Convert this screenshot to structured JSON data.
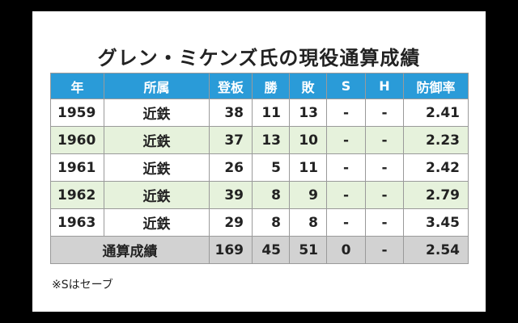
{
  "title": "グレン・ミケンズ氏の現役通算成績",
  "table": {
    "headers": [
      "年",
      "所属",
      "登板",
      "勝",
      "敗",
      "S",
      "H",
      "防御率"
    ],
    "rows": [
      [
        "1959",
        "近鉄",
        "38",
        "11",
        "13",
        "-",
        "-",
        "2.41"
      ],
      [
        "1960",
        "近鉄",
        "37",
        "13",
        "10",
        "-",
        "-",
        "2.23"
      ],
      [
        "1961",
        "近鉄",
        "26",
        "5",
        "11",
        "-",
        "-",
        "2.42"
      ],
      [
        "1962",
        "近鉄",
        "39",
        "8",
        "9",
        "-",
        "-",
        "2.79"
      ],
      [
        "1963",
        "近鉄",
        "29",
        "8",
        "8",
        "-",
        "-",
        "3.45"
      ]
    ],
    "total": {
      "label": "通算成績",
      "values": [
        "169",
        "45",
        "51",
        "0",
        "-",
        "2.54"
      ]
    }
  },
  "note": "※Sはセーブ"
}
